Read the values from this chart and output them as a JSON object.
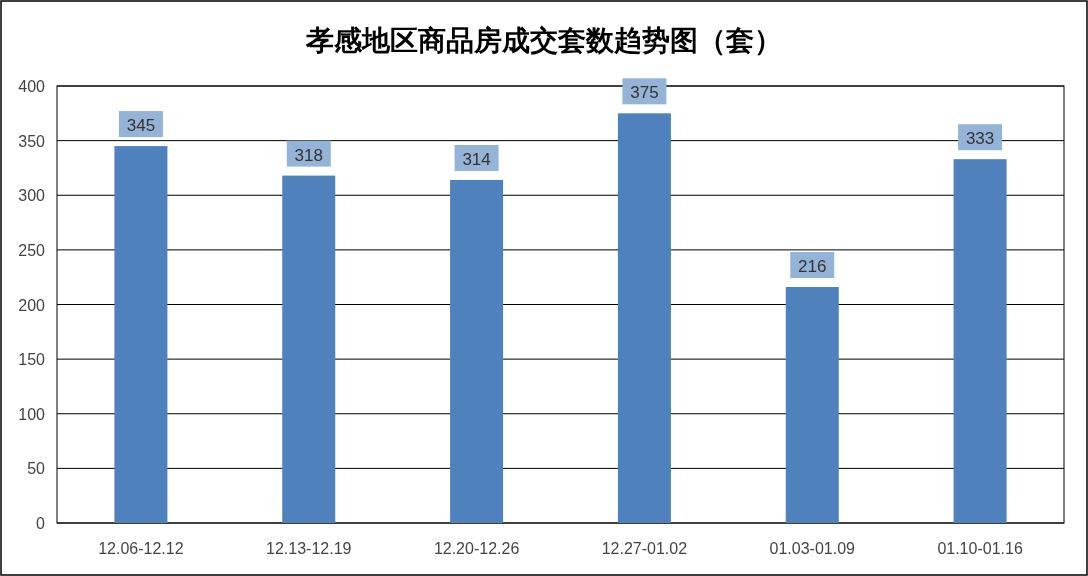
{
  "chart_data": {
    "type": "bar",
    "title": "孝感地区商品房成交套数趋势图（套）",
    "categories": [
      "12.06-12.12",
      "12.13-12.19",
      "12.20-12.26",
      "12.27-01.02",
      "01.03-01.09",
      "01.10-01.16"
    ],
    "values": [
      345,
      318,
      314,
      375,
      216,
      333
    ],
    "color": "#4f81bd",
    "ylim": [
      0,
      400
    ],
    "yticks": [
      0,
      50,
      100,
      150,
      200,
      250,
      300,
      350,
      400
    ],
    "grid": "y",
    "data_labels": true
  }
}
